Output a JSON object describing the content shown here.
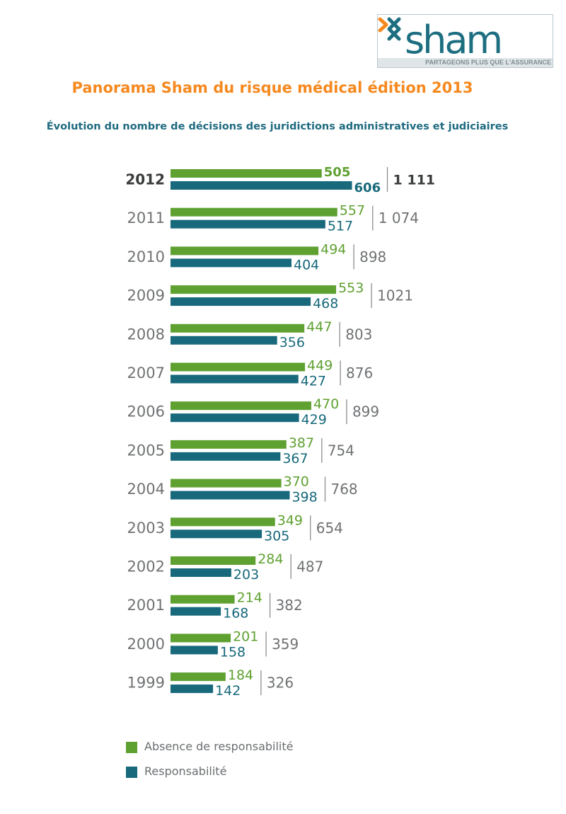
{
  "logo": {
    "wordmark": "sham",
    "tagline": "PARTAGEONS PLUS QUE L'ASSURANCE",
    "colors": {
      "orange": "#f5891f",
      "teal": "#1d6e80"
    }
  },
  "title": "Panorama Sham du risque médical édition 2013",
  "subtitle": "Évolution du nombre de décisions des juridictions administratives et judiciaires",
  "chart_data": {
    "type": "bar",
    "orientation": "horizontal",
    "categories": [
      "2012",
      "2011",
      "2010",
      "2009",
      "2008",
      "2007",
      "2006",
      "2005",
      "2004",
      "2003",
      "2002",
      "2001",
      "2000",
      "1999"
    ],
    "series": [
      {
        "name": "Absence de responsabilité",
        "color": "#5fa131",
        "values": [
          505,
          557,
          494,
          553,
          447,
          449,
          470,
          387,
          370,
          349,
          284,
          214,
          201,
          184
        ]
      },
      {
        "name": "Responsabilité",
        "color": "#17697b",
        "values": [
          606,
          517,
          404,
          468,
          356,
          427,
          429,
          367,
          398,
          305,
          203,
          168,
          158,
          142
        ]
      }
    ],
    "totals": [
      "1 111",
      "1 074",
      "898",
      "1021",
      "803",
      "876",
      "899",
      "754",
      "768",
      "654",
      "487",
      "382",
      "359",
      "326"
    ],
    "highlight_category": "2012",
    "legend_position": "bottom-left",
    "grid": false
  }
}
